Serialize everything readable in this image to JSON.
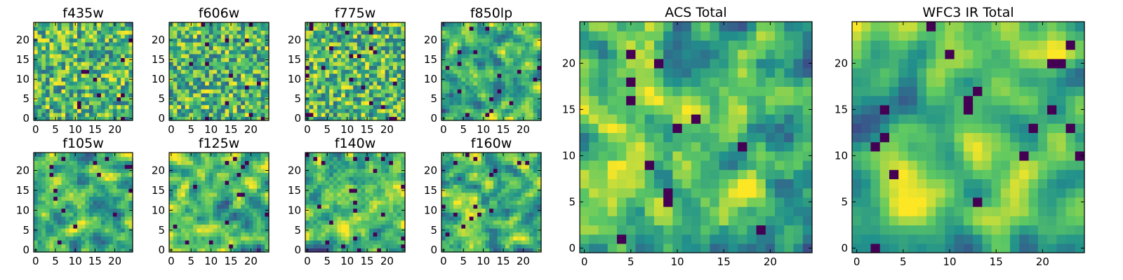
{
  "figure": {
    "colormap": [
      "#440154",
      "#3b528b",
      "#21918c",
      "#5ec962",
      "#fde725"
    ],
    "background": "#ffffff"
  },
  "chart_data": [
    {
      "type": "heatmap",
      "title": "f435w",
      "grid_size": 25,
      "seed": 11,
      "smooth": 0,
      "xlim": [
        -0.5,
        24.5
      ],
      "ylim": [
        -0.5,
        24.5
      ],
      "xticks": [
        0,
        5,
        10,
        15,
        20
      ],
      "yticks": [
        0,
        5,
        10,
        15,
        20
      ],
      "xtick_labels": [
        "0",
        "5",
        "10",
        "15",
        "20"
      ],
      "ytick_labels": [
        "0",
        "5",
        "10",
        "15",
        "20"
      ],
      "value_range": [
        0,
        1
      ]
    },
    {
      "type": "heatmap",
      "title": "f606w",
      "grid_size": 25,
      "seed": 23,
      "smooth": 0,
      "xlim": [
        -0.5,
        24.5
      ],
      "ylim": [
        -0.5,
        24.5
      ],
      "xticks": [
        0,
        5,
        10,
        15,
        20
      ],
      "yticks": [
        0,
        5,
        10,
        15,
        20
      ],
      "xtick_labels": [
        "0",
        "5",
        "10",
        "15",
        "20"
      ],
      "ytick_labels": [
        "0",
        "5",
        "10",
        "15",
        "20"
      ],
      "value_range": [
        0,
        1
      ]
    },
    {
      "type": "heatmap",
      "title": "f775w",
      "grid_size": 25,
      "seed": 37,
      "smooth": 0,
      "xlim": [
        -0.5,
        24.5
      ],
      "ylim": [
        -0.5,
        24.5
      ],
      "xticks": [
        0,
        5,
        10,
        15,
        20
      ],
      "yticks": [
        0,
        5,
        10,
        15,
        20
      ],
      "xtick_labels": [
        "0",
        "5",
        "10",
        "15",
        "20"
      ],
      "ytick_labels": [
        "0",
        "5",
        "10",
        "15",
        "20"
      ],
      "value_range": [
        0,
        1
      ]
    },
    {
      "type": "heatmap",
      "title": "f850lp",
      "grid_size": 25,
      "seed": 41,
      "smooth": 1,
      "xlim": [
        -0.5,
        24.5
      ],
      "ylim": [
        -0.5,
        24.5
      ],
      "xticks": [
        0,
        5,
        10,
        15,
        20
      ],
      "yticks": [
        0,
        5,
        10,
        15,
        20
      ],
      "xtick_labels": [
        "0",
        "5",
        "10",
        "15",
        "20"
      ],
      "ytick_labels": [
        "0",
        "5",
        "10",
        "15",
        "20"
      ],
      "value_range": [
        0,
        1
      ]
    },
    {
      "type": "heatmap",
      "title": "ACS Total",
      "grid_size": 25,
      "seed": 53,
      "smooth": 1,
      "xlim": [
        -0.5,
        24.5
      ],
      "ylim": [
        -0.5,
        24.5
      ],
      "xticks": [
        0,
        5,
        10,
        15,
        20
      ],
      "yticks": [
        0,
        5,
        10,
        15,
        20
      ],
      "xtick_labels": [
        "0",
        "5",
        "10",
        "15",
        "20"
      ],
      "ytick_labels": [
        "0",
        "5",
        "10",
        "15",
        "20"
      ],
      "value_range": [
        0,
        1
      ]
    },
    {
      "type": "heatmap",
      "title": "WFC3 IR Total",
      "grid_size": 25,
      "seed": 67,
      "smooth": 2,
      "xlim": [
        -0.5,
        24.5
      ],
      "ylim": [
        -0.5,
        24.5
      ],
      "xticks": [
        0,
        5,
        10,
        15,
        20
      ],
      "yticks": [
        0,
        5,
        10,
        15,
        20
      ],
      "xtick_labels": [
        "0",
        "5",
        "10",
        "15",
        "20"
      ],
      "ytick_labels": [
        "0",
        "5",
        "10",
        "15",
        "20"
      ],
      "value_range": [
        0,
        1
      ]
    },
    {
      "type": "heatmap",
      "title": "f105w",
      "grid_size": 25,
      "seed": 71,
      "smooth": 1,
      "xlim": [
        -0.5,
        24.5
      ],
      "ylim": [
        -0.5,
        24.5
      ],
      "xticks": [
        0,
        5,
        10,
        15,
        20
      ],
      "yticks": [
        0,
        5,
        10,
        15,
        20
      ],
      "xtick_labels": [
        "0",
        "5",
        "10",
        "15",
        "20"
      ],
      "ytick_labels": [
        "0",
        "5",
        "10",
        "15",
        "20"
      ],
      "value_range": [
        0,
        1
      ]
    },
    {
      "type": "heatmap",
      "title": "f125w",
      "grid_size": 25,
      "seed": 83,
      "smooth": 1,
      "xlim": [
        -0.5,
        24.5
      ],
      "ylim": [
        -0.5,
        24.5
      ],
      "xticks": [
        0,
        5,
        10,
        15,
        20
      ],
      "yticks": [
        0,
        5,
        10,
        15,
        20
      ],
      "xtick_labels": [
        "0",
        "5",
        "10",
        "15",
        "20"
      ],
      "ytick_labels": [
        "0",
        "5",
        "10",
        "15",
        "20"
      ],
      "value_range": [
        0,
        1
      ]
    },
    {
      "type": "heatmap",
      "title": "f140w",
      "grid_size": 25,
      "seed": 97,
      "smooth": 1,
      "xlim": [
        -0.5,
        24.5
      ],
      "ylim": [
        -0.5,
        24.5
      ],
      "xticks": [
        0,
        5,
        10,
        15,
        20
      ],
      "yticks": [
        0,
        5,
        10,
        15,
        20
      ],
      "xtick_labels": [
        "0",
        "5",
        "10",
        "15",
        "20"
      ],
      "ytick_labels": [
        "0",
        "5",
        "10",
        "15",
        "20"
      ],
      "value_range": [
        0,
        1
      ]
    },
    {
      "type": "heatmap",
      "title": "f160w",
      "grid_size": 25,
      "seed": 101,
      "smooth": 1,
      "xlim": [
        -0.5,
        24.5
      ],
      "ylim": [
        -0.5,
        24.5
      ],
      "xticks": [
        0,
        5,
        10,
        15,
        20
      ],
      "yticks": [
        0,
        5,
        10,
        15,
        20
      ],
      "xtick_labels": [
        "0",
        "5",
        "10",
        "15",
        "20"
      ],
      "ytick_labels": [
        "0",
        "5",
        "10",
        "15",
        "20"
      ],
      "value_range": [
        0,
        1
      ]
    }
  ]
}
